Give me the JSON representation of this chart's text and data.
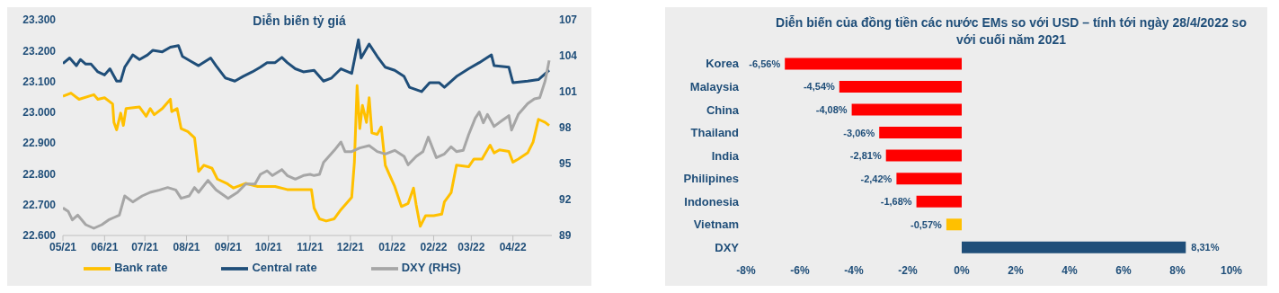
{
  "chart_data": [
    {
      "type": "line",
      "title": "Diễn biến tỷ giá",
      "xlim": [
        "2021-05-01",
        "2022-04-30"
      ],
      "xticks": [
        {
          "value": "2021-05-01",
          "label": "05/21"
        },
        {
          "value": "2021-06-01",
          "label": "06/21"
        },
        {
          "value": "2021-07-01",
          "label": "07/21"
        },
        {
          "value": "2021-08-01",
          "label": "08/21"
        },
        {
          "value": "2021-09-01",
          "label": "09/21"
        },
        {
          "value": "2021-10-01",
          "label": "10/21"
        },
        {
          "value": "2021-11-01",
          "label": "11/21"
        },
        {
          "value": "2021-12-01",
          "label": "12/21"
        },
        {
          "value": "2022-01-01",
          "label": "01/22"
        },
        {
          "value": "2022-02-01",
          "label": "02/22"
        },
        {
          "value": "2022-03-01",
          "label": "03/22"
        },
        {
          "value": "2022-04-01",
          "label": "04/22"
        }
      ],
      "ylim": [
        22600,
        23300
      ],
      "yticks": [
        {
          "value": 22600,
          "label": "22.600"
        },
        {
          "value": 22700,
          "label": "22.700"
        },
        {
          "value": 22800,
          "label": "22.800"
        },
        {
          "value": 22900,
          "label": "22.900"
        },
        {
          "value": 23000,
          "label": "23.000"
        },
        {
          "value": 23100,
          "label": "23.100"
        },
        {
          "value": 23200,
          "label": "23.200"
        },
        {
          "value": 23300,
          "label": "23.300"
        }
      ],
      "y2lim": [
        89,
        107
      ],
      "y2ticks": [
        89,
        92,
        95,
        98,
        101,
        104,
        107
      ],
      "legend": "bottom",
      "marker": "none",
      "line_style": "solid",
      "series": [
        {
          "name": "Central rate",
          "color": "#1f4e79",
          "x": [
            "2021-05-01",
            "2021-05-06",
            "2021-05-11",
            "2021-05-14",
            "2021-05-18",
            "2021-05-22",
            "2021-05-27",
            "2021-06-01",
            "2021-06-05",
            "2021-06-10",
            "2021-06-13",
            "2021-06-16",
            "2021-06-22",
            "2021-06-27",
            "2021-07-03",
            "2021-07-07",
            "2021-07-14",
            "2021-07-20",
            "2021-07-26",
            "2021-07-29",
            "2021-08-04",
            "2021-08-10",
            "2021-08-19",
            "2021-08-23",
            "2021-08-30",
            "2021-09-06",
            "2021-09-12",
            "2021-09-19",
            "2021-09-25",
            "2021-09-30",
            "2021-10-06",
            "2021-10-11",
            "2021-10-15",
            "2021-10-21",
            "2021-10-27",
            "2021-11-04",
            "2021-11-11",
            "2021-11-17",
            "2021-11-24",
            "2021-12-02",
            "2021-12-07",
            "2021-12-09",
            "2021-12-15",
            "2021-12-21",
            "2021-12-27",
            "2022-01-03",
            "2022-01-10",
            "2022-01-14",
            "2022-01-23",
            "2022-01-29",
            "2022-02-05",
            "2022-02-09",
            "2022-02-18",
            "2022-02-27",
            "2022-03-07",
            "2022-03-16",
            "2022-03-18",
            "2022-03-29",
            "2022-04-01",
            "2022-04-12",
            "2022-04-20",
            "2022-04-28"
          ],
          "values": [
            23158,
            23176,
            23151,
            23171,
            23156,
            23156,
            23131,
            23121,
            23141,
            23101,
            23101,
            23146,
            23186,
            23171,
            23186,
            23201,
            23196,
            23211,
            23216,
            23181,
            23166,
            23151,
            23176,
            23151,
            23111,
            23101,
            23116,
            23131,
            23146,
            23161,
            23161,
            23178,
            23161,
            23141,
            23131,
            23136,
            23101,
            23111,
            23141,
            23126,
            23235,
            23176,
            23221,
            23181,
            23146,
            23136,
            23116,
            23081,
            23067,
            23096,
            23096,
            23081,
            23116,
            23141,
            23161,
            23186,
            23151,
            23146,
            23096,
            23101,
            23106,
            23136
          ]
        },
        {
          "name": "Bank rate",
          "color": "#ffc000",
          "x": [
            "2021-05-01",
            "2021-05-07",
            "2021-05-13",
            "2021-05-24",
            "2021-05-27",
            "2021-06-01",
            "2021-06-07",
            "2021-06-08",
            "2021-06-10",
            "2021-06-13",
            "2021-06-15",
            "2021-06-17",
            "2021-06-27",
            "2021-07-02",
            "2021-07-05",
            "2021-07-08",
            "2021-07-14",
            "2021-07-20",
            "2021-07-21",
            "2021-07-25",
            "2021-07-28",
            "2021-08-02",
            "2021-08-07",
            "2021-08-10",
            "2021-08-14",
            "2021-08-20",
            "2021-08-24",
            "2021-08-31",
            "2021-09-05",
            "2021-09-14",
            "2021-09-23",
            "2021-10-06",
            "2021-10-15",
            "2021-10-27",
            "2021-11-02",
            "2021-11-04",
            "2021-11-08",
            "2021-11-13",
            "2021-11-19",
            "2021-11-24",
            "2021-12-01",
            "2021-12-02",
            "2021-12-04",
            "2021-12-06",
            "2021-12-08",
            "2021-12-10",
            "2021-12-13",
            "2021-12-15",
            "2021-12-17",
            "2021-12-21",
            "2021-12-24",
            "2021-12-27",
            "2021-12-30",
            "2022-01-03",
            "2022-01-08",
            "2022-01-13",
            "2022-01-17",
            "2022-01-19",
            "2022-01-22",
            "2022-01-26",
            "2022-02-01",
            "2022-02-07",
            "2022-02-09",
            "2022-02-14",
            "2022-02-18",
            "2022-02-27",
            "2022-03-03",
            "2022-03-09",
            "2022-03-15",
            "2022-03-18",
            "2022-03-22",
            "2022-03-29",
            "2022-04-01",
            "2022-04-05",
            "2022-04-12",
            "2022-04-16",
            "2022-04-20",
            "2022-04-25",
            "2022-04-28"
          ],
          "values": [
            23052,
            23062,
            23042,
            23057,
            23042,
            23047,
            23027,
            22967,
            22943,
            22997,
            22957,
            23012,
            23017,
            22987,
            23012,
            22992,
            23012,
            23042,
            23002,
            23012,
            22947,
            22937,
            22917,
            22808,
            22828,
            22818,
            22783,
            22769,
            22754,
            22769,
            22759,
            22759,
            22749,
            22749,
            22749,
            22689,
            22654,
            22647,
            22654,
            22684,
            22719,
            22724,
            22838,
            23086,
            22947,
            23022,
            22967,
            23047,
            22933,
            22928,
            22952,
            22828,
            22798,
            22759,
            22694,
            22704,
            22754,
            22699,
            22630,
            22664,
            22664,
            22669,
            22709,
            22739,
            22828,
            22823,
            22848,
            22848,
            22893,
            22868,
            22878,
            22873,
            22838,
            22848,
            22868,
            22903,
            22977,
            22967,
            22957
          ]
        },
        {
          "name": "DXY (RHS)",
          "color": "#a6a6a6",
          "axis": "y2",
          "x": [
            "2021-05-01",
            "2021-05-05",
            "2021-05-08",
            "2021-05-12",
            "2021-05-18",
            "2021-05-24",
            "2021-05-30",
            "2021-06-04",
            "2021-06-08",
            "2021-06-12",
            "2021-06-16",
            "2021-06-22",
            "2021-06-29",
            "2021-07-05",
            "2021-07-12",
            "2021-07-18",
            "2021-07-24",
            "2021-07-28",
            "2021-08-03",
            "2021-08-07",
            "2021-08-10",
            "2021-08-17",
            "2021-08-23",
            "2021-09-01",
            "2021-09-08",
            "2021-09-14",
            "2021-09-21",
            "2021-09-25",
            "2021-09-30",
            "2021-10-04",
            "2021-10-11",
            "2021-10-15",
            "2021-10-21",
            "2021-10-27",
            "2021-11-01",
            "2021-11-04",
            "2021-11-08",
            "2021-11-11",
            "2021-11-15",
            "2021-11-19",
            "2021-11-24",
            "2021-11-27",
            "2021-12-02",
            "2021-12-08",
            "2021-12-15",
            "2021-12-21",
            "2021-12-27",
            "2022-01-03",
            "2022-01-10",
            "2022-01-13",
            "2022-01-19",
            "2022-01-24",
            "2022-01-28",
            "2022-02-03",
            "2022-02-09",
            "2022-02-14",
            "2022-02-18",
            "2022-02-23",
            "2022-02-27",
            "2022-03-04",
            "2022-03-07",
            "2022-03-10",
            "2022-03-13",
            "2022-03-18",
            "2022-03-24",
            "2022-03-29",
            "2022-03-31",
            "2022-04-05",
            "2022-04-12",
            "2022-04-17",
            "2022-04-21",
            "2022-04-25",
            "2022-04-28"
          ],
          "values": [
            91.3,
            91.0,
            90.3,
            90.7,
            89.9,
            89.6,
            89.9,
            90.3,
            90.5,
            90.7,
            92.3,
            91.8,
            92.3,
            92.6,
            92.8,
            93.0,
            92.8,
            92.1,
            92.3,
            93.0,
            92.6,
            93.6,
            92.8,
            92.1,
            92.6,
            93.3,
            93.3,
            94.1,
            94.4,
            94.0,
            94.5,
            94.0,
            93.7,
            94.0,
            94.1,
            94.0,
            94.1,
            95.1,
            95.6,
            96.1,
            96.8,
            96.0,
            96.0,
            96.3,
            96.5,
            96.0,
            95.8,
            96.1,
            95.6,
            94.9,
            95.6,
            96.0,
            97.2,
            95.5,
            95.8,
            96.4,
            96.0,
            96.1,
            97.4,
            98.8,
            99.3,
            98.4,
            99.1,
            98.1,
            98.6,
            99.0,
            97.8,
            99.1,
            100.0,
            100.4,
            100.5,
            101.9,
            103.6
          ]
        }
      ]
    },
    {
      "type": "bar",
      "orientation": "horizontal",
      "title": "Diễn biến của đồng tiền các nước EMs so với USD – tính tới ngày 28/4/2022 so với cuối năm 2021",
      "categories": [
        "Korea",
        "Malaysia",
        "China",
        "Thailand",
        "India",
        "Philipines",
        "Indonesia",
        "Vietnam",
        "DXY"
      ],
      "values": [
        -6.56,
        -4.54,
        -4.08,
        -3.06,
        -2.81,
        -2.42,
        -1.68,
        -0.57,
        8.31
      ],
      "value_labels": [
        "-6,56%",
        "-4,54%",
        "-4,08%",
        "-3,06%",
        "-2,81%",
        "-2,42%",
        "-1,68%",
        "-0,57%",
        "8,31%"
      ],
      "colors": [
        "#ff0000",
        "#ff0000",
        "#ff0000",
        "#ff0000",
        "#ff0000",
        "#ff0000",
        "#ff0000",
        "#ffc000",
        "#1f4e79"
      ],
      "xlim": [
        -8,
        10
      ],
      "xticks": [
        {
          "value": -8,
          "label": "-8%"
        },
        {
          "value": -6,
          "label": "-6%"
        },
        {
          "value": -4,
          "label": "-4%"
        },
        {
          "value": -2,
          "label": "-2%"
        },
        {
          "value": 0,
          "label": "0%"
        },
        {
          "value": 2,
          "label": "2%"
        },
        {
          "value": 4,
          "label": "4%"
        },
        {
          "value": 6,
          "label": "6%"
        },
        {
          "value": 8,
          "label": "8%"
        },
        {
          "value": 10,
          "label": "10%"
        }
      ]
    }
  ]
}
